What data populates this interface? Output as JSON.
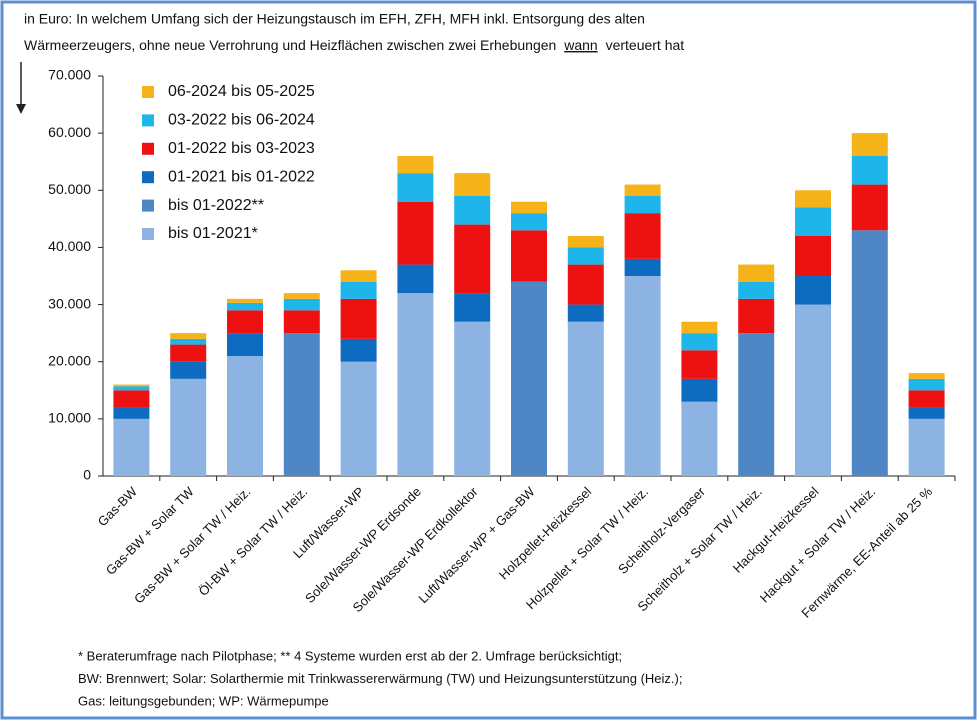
{
  "chart_data": {
    "type": "stacked_bar",
    "title_line1": "in Euro: In welchem Umfang sich der Heizungstausch im EFH, ZFH, MFH inkl. Entsorgung des alten",
    "title_line2_start": "Wärmeerzeugers, ohne neue Verrohrung und Heizflächen zwischen zwei Erhebungen",
    "title_emphasis": "wann",
    "title_line2_end": "verteuert hat",
    "categories": [
      "Gas-BW",
      "Gas-BW + Solar TW",
      "Gas-BW + Solar TW / Heiz.",
      "Öl-BW + Solar TW / Heiz.",
      "Luft/Wasser-WP",
      "Sole/Wasser-WP Erdsonde",
      "Sole/Wasser-WP Erdkollektor",
      "Luft/Wasser-WP + Gas-BW",
      "Holzpellet-Heizkessel",
      "Holzpellet + Solar TW / Heiz.",
      "Scheitholz-Vergaser",
      "Scheitholz + Solar TW / Heiz.",
      "Hackgut-Heizkessel",
      "Hackgut + Solar TW / Heiz.",
      "Fernwärme, EE-Anteil ab 25 %"
    ],
    "series": [
      {
        "name": "bis 01-2021*",
        "color": "#8db3e2",
        "values": [
          10000,
          17000,
          21000,
          null,
          20000,
          32000,
          27000,
          null,
          27000,
          35000,
          13000,
          null,
          30000,
          null,
          10000
        ]
      },
      {
        "name": "bis 01-2022**",
        "color": "#4f86c6",
        "values": [
          null,
          null,
          null,
          25000,
          null,
          null,
          null,
          34000,
          null,
          null,
          null,
          25000,
          null,
          43000,
          null
        ]
      },
      {
        "name": "01-2021 bis 01-2022",
        "color": "#0d6cc0",
        "values": [
          2000,
          3000,
          4000,
          null,
          4000,
          5000,
          5000,
          null,
          3000,
          3000,
          4000,
          null,
          5000,
          null,
          2000
        ]
      },
      {
        "name": "01-2022 bis 03-2023",
        "color": "#ee1111",
        "values": [
          3000,
          3000,
          4000,
          4000,
          7000,
          11000,
          12000,
          9000,
          7000,
          8000,
          5000,
          6000,
          7000,
          8000,
          3000
        ]
      },
      {
        "name": "03-2022 bis 06-2024",
        "color": "#1eb6ea",
        "values": [
          700,
          1000,
          1300,
          2000,
          3000,
          5000,
          5000,
          3000,
          3000,
          3000,
          3000,
          3000,
          5000,
          5000,
          2000
        ]
      },
      {
        "name": "06-2024 bis 05-2025",
        "color": "#f6b219",
        "values": [
          300,
          1000,
          700,
          1000,
          2000,
          3000,
          4000,
          2000,
          2000,
          2000,
          2000,
          3000,
          3000,
          4000,
          1000
        ]
      }
    ],
    "ylim": [
      0,
      70000
    ],
    "yticks": [
      {
        "value": 0,
        "label": "0"
      },
      {
        "value": 10000,
        "label": "10.000"
      },
      {
        "value": 20000,
        "label": "20.000"
      },
      {
        "value": 30000,
        "label": "30.000"
      },
      {
        "value": 40000,
        "label": "40.000"
      },
      {
        "value": 50000,
        "label": "50.000"
      },
      {
        "value": 60000,
        "label": "60.000"
      },
      {
        "value": 70000,
        "label": "70.000"
      }
    ],
    "footnotes": [
      "* Beraterumfrage nach Pilotphase; ** 4 Systeme wurden erst ab der 2. Umfrage berücksichtigt;",
      "BW: Brennwert; Solar: Solarthermie mit Trinkwassererwärmung (TW) und Heizungsunterstützung (Heiz.);",
      "Gas: leitungsgebunden; WP: Wärmepumpe"
    ]
  }
}
